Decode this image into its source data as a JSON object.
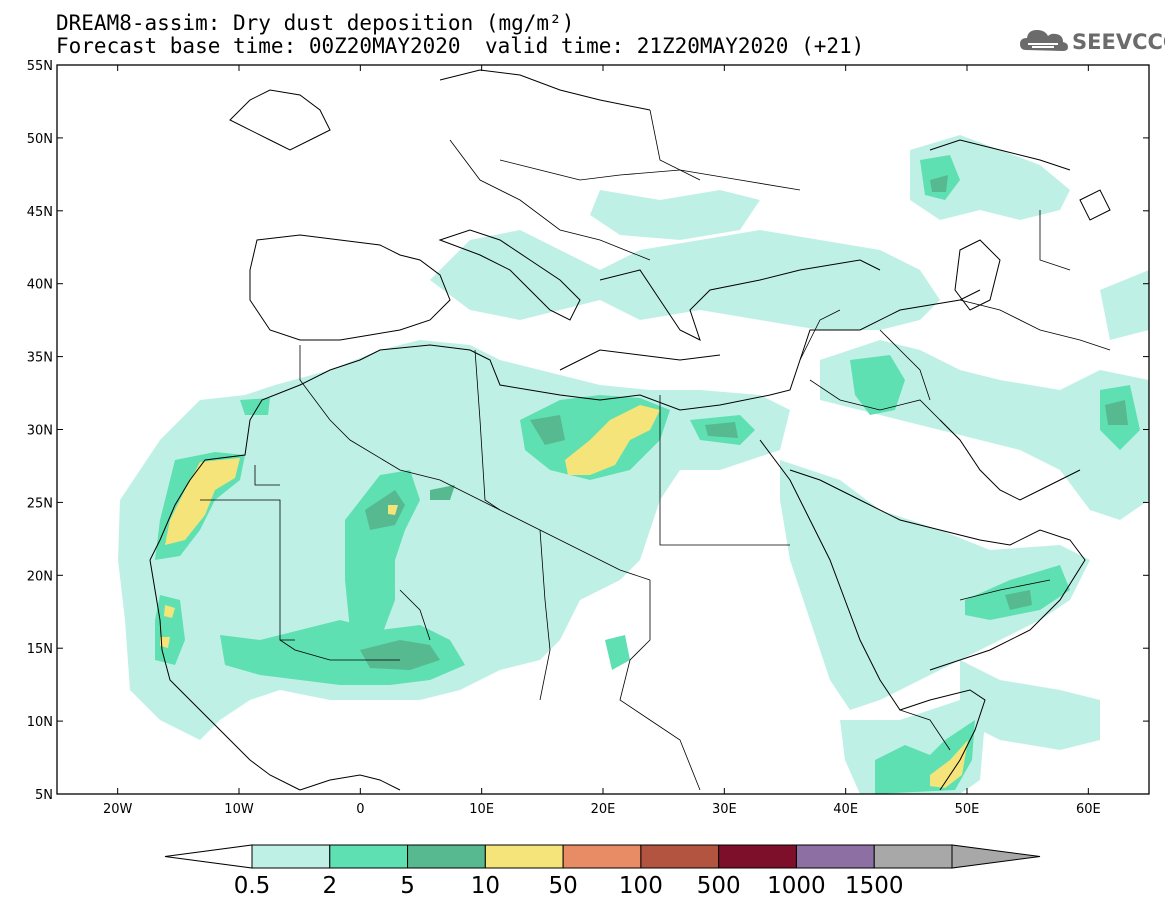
{
  "header": {
    "line1": "DREAM8-assim: Dry dust deposition (mg/m²)",
    "line2": "Forecast base time: 00Z20MAY2020",
    "valid": "valid time: 21Z20MAY2020 (+21)",
    "logo": "SEEVCCC"
  },
  "map": {
    "lon_range": [
      -25,
      65
    ],
    "lat_range": [
      5,
      55
    ],
    "lat_ticks": [
      "5N",
      "10N",
      "15N",
      "20N",
      "25N",
      "30N",
      "35N",
      "40N",
      "45N",
      "50N",
      "55N"
    ],
    "lat_values": [
      5,
      10,
      15,
      20,
      25,
      30,
      35,
      40,
      45,
      50,
      55
    ],
    "lon_ticks": [
      "20W",
      "10W",
      "0",
      "10E",
      "20E",
      "30E",
      "40E",
      "50E",
      "60E"
    ],
    "lon_values": [
      -20,
      -10,
      0,
      10,
      20,
      30,
      40,
      50,
      60
    ]
  },
  "colorbar": {
    "labels": [
      "0.5",
      "2",
      "5",
      "10",
      "50",
      "100",
      "500",
      "1000",
      "1500"
    ],
    "colors": [
      "#bff0e6",
      "#5fe0b2",
      "#56b98f",
      "#f5e47a",
      "#e88c66",
      "#b35441",
      "#7d0f2a",
      "#8e6fa3",
      "#a8a8a8"
    ]
  }
}
